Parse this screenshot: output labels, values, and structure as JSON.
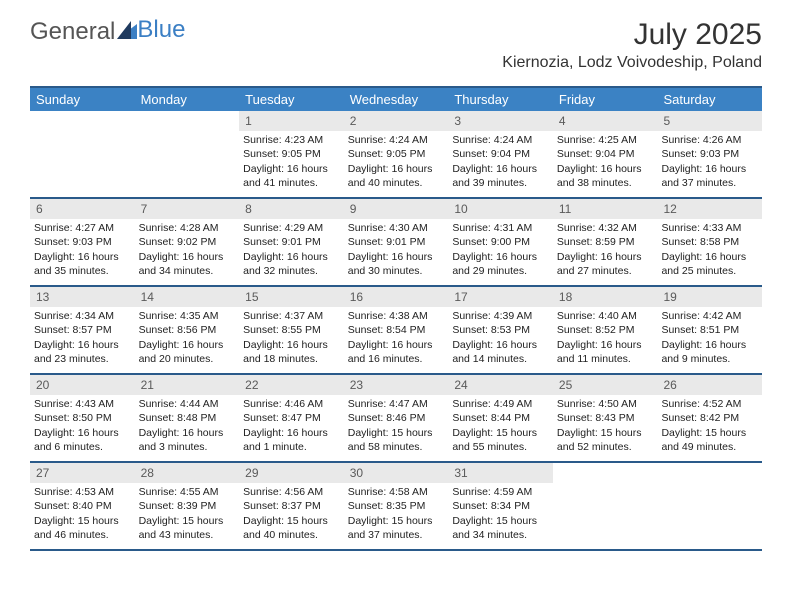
{
  "logo": {
    "text1": "General",
    "text2": "Blue"
  },
  "title": "July 2025",
  "location": "Kiernozia, Lodz Voivodeship, Poland",
  "colors": {
    "header_bar": "#3b82c4",
    "header_border": "#2a5a8a",
    "daynum_bg": "#e9e9e9",
    "logo_gray": "#555555",
    "logo_blue": "#3b7fc4"
  },
  "weekdays": [
    "Sunday",
    "Monday",
    "Tuesday",
    "Wednesday",
    "Thursday",
    "Friday",
    "Saturday"
  ],
  "weeks": [
    [
      {
        "empty": true
      },
      {
        "empty": true
      },
      {
        "n": "1",
        "sunrise": "Sunrise: 4:23 AM",
        "sunset": "Sunset: 9:05 PM",
        "daylight": "Daylight: 16 hours and 41 minutes."
      },
      {
        "n": "2",
        "sunrise": "Sunrise: 4:24 AM",
        "sunset": "Sunset: 9:05 PM",
        "daylight": "Daylight: 16 hours and 40 minutes."
      },
      {
        "n": "3",
        "sunrise": "Sunrise: 4:24 AM",
        "sunset": "Sunset: 9:04 PM",
        "daylight": "Daylight: 16 hours and 39 minutes."
      },
      {
        "n": "4",
        "sunrise": "Sunrise: 4:25 AM",
        "sunset": "Sunset: 9:04 PM",
        "daylight": "Daylight: 16 hours and 38 minutes."
      },
      {
        "n": "5",
        "sunrise": "Sunrise: 4:26 AM",
        "sunset": "Sunset: 9:03 PM",
        "daylight": "Daylight: 16 hours and 37 minutes."
      }
    ],
    [
      {
        "n": "6",
        "sunrise": "Sunrise: 4:27 AM",
        "sunset": "Sunset: 9:03 PM",
        "daylight": "Daylight: 16 hours and 35 minutes."
      },
      {
        "n": "7",
        "sunrise": "Sunrise: 4:28 AM",
        "sunset": "Sunset: 9:02 PM",
        "daylight": "Daylight: 16 hours and 34 minutes."
      },
      {
        "n": "8",
        "sunrise": "Sunrise: 4:29 AM",
        "sunset": "Sunset: 9:01 PM",
        "daylight": "Daylight: 16 hours and 32 minutes."
      },
      {
        "n": "9",
        "sunrise": "Sunrise: 4:30 AM",
        "sunset": "Sunset: 9:01 PM",
        "daylight": "Daylight: 16 hours and 30 minutes."
      },
      {
        "n": "10",
        "sunrise": "Sunrise: 4:31 AM",
        "sunset": "Sunset: 9:00 PM",
        "daylight": "Daylight: 16 hours and 29 minutes."
      },
      {
        "n": "11",
        "sunrise": "Sunrise: 4:32 AM",
        "sunset": "Sunset: 8:59 PM",
        "daylight": "Daylight: 16 hours and 27 minutes."
      },
      {
        "n": "12",
        "sunrise": "Sunrise: 4:33 AM",
        "sunset": "Sunset: 8:58 PM",
        "daylight": "Daylight: 16 hours and 25 minutes."
      }
    ],
    [
      {
        "n": "13",
        "sunrise": "Sunrise: 4:34 AM",
        "sunset": "Sunset: 8:57 PM",
        "daylight": "Daylight: 16 hours and 23 minutes."
      },
      {
        "n": "14",
        "sunrise": "Sunrise: 4:35 AM",
        "sunset": "Sunset: 8:56 PM",
        "daylight": "Daylight: 16 hours and 20 minutes."
      },
      {
        "n": "15",
        "sunrise": "Sunrise: 4:37 AM",
        "sunset": "Sunset: 8:55 PM",
        "daylight": "Daylight: 16 hours and 18 minutes."
      },
      {
        "n": "16",
        "sunrise": "Sunrise: 4:38 AM",
        "sunset": "Sunset: 8:54 PM",
        "daylight": "Daylight: 16 hours and 16 minutes."
      },
      {
        "n": "17",
        "sunrise": "Sunrise: 4:39 AM",
        "sunset": "Sunset: 8:53 PM",
        "daylight": "Daylight: 16 hours and 14 minutes."
      },
      {
        "n": "18",
        "sunrise": "Sunrise: 4:40 AM",
        "sunset": "Sunset: 8:52 PM",
        "daylight": "Daylight: 16 hours and 11 minutes."
      },
      {
        "n": "19",
        "sunrise": "Sunrise: 4:42 AM",
        "sunset": "Sunset: 8:51 PM",
        "daylight": "Daylight: 16 hours and 9 minutes."
      }
    ],
    [
      {
        "n": "20",
        "sunrise": "Sunrise: 4:43 AM",
        "sunset": "Sunset: 8:50 PM",
        "daylight": "Daylight: 16 hours and 6 minutes."
      },
      {
        "n": "21",
        "sunrise": "Sunrise: 4:44 AM",
        "sunset": "Sunset: 8:48 PM",
        "daylight": "Daylight: 16 hours and 3 minutes."
      },
      {
        "n": "22",
        "sunrise": "Sunrise: 4:46 AM",
        "sunset": "Sunset: 8:47 PM",
        "daylight": "Daylight: 16 hours and 1 minute."
      },
      {
        "n": "23",
        "sunrise": "Sunrise: 4:47 AM",
        "sunset": "Sunset: 8:46 PM",
        "daylight": "Daylight: 15 hours and 58 minutes."
      },
      {
        "n": "24",
        "sunrise": "Sunrise: 4:49 AM",
        "sunset": "Sunset: 8:44 PM",
        "daylight": "Daylight: 15 hours and 55 minutes."
      },
      {
        "n": "25",
        "sunrise": "Sunrise: 4:50 AM",
        "sunset": "Sunset: 8:43 PM",
        "daylight": "Daylight: 15 hours and 52 minutes."
      },
      {
        "n": "26",
        "sunrise": "Sunrise: 4:52 AM",
        "sunset": "Sunset: 8:42 PM",
        "daylight": "Daylight: 15 hours and 49 minutes."
      }
    ],
    [
      {
        "n": "27",
        "sunrise": "Sunrise: 4:53 AM",
        "sunset": "Sunset: 8:40 PM",
        "daylight": "Daylight: 15 hours and 46 minutes."
      },
      {
        "n": "28",
        "sunrise": "Sunrise: 4:55 AM",
        "sunset": "Sunset: 8:39 PM",
        "daylight": "Daylight: 15 hours and 43 minutes."
      },
      {
        "n": "29",
        "sunrise": "Sunrise: 4:56 AM",
        "sunset": "Sunset: 8:37 PM",
        "daylight": "Daylight: 15 hours and 40 minutes."
      },
      {
        "n": "30",
        "sunrise": "Sunrise: 4:58 AM",
        "sunset": "Sunset: 8:35 PM",
        "daylight": "Daylight: 15 hours and 37 minutes."
      },
      {
        "n": "31",
        "sunrise": "Sunrise: 4:59 AM",
        "sunset": "Sunset: 8:34 PM",
        "daylight": "Daylight: 15 hours and 34 minutes."
      },
      {
        "empty": true
      },
      {
        "empty": true
      }
    ]
  ]
}
